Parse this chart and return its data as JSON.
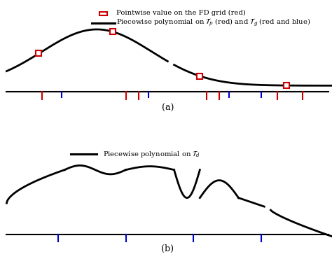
{
  "title_a": "(a)",
  "title_b": "(b)",
  "legend_top_label1": "Pointwise value on the FD grid (red)",
  "legend_top_label2": "Piecewise polynomial on $\\mathcal{T}_p$ (red) and $\\mathcal{T}_g$ (red and blue)",
  "legend_b_label": "Piecewise polynomial on $\\mathcal{T}_d$",
  "tick_a_red": [
    0.11,
    0.37,
    0.41,
    0.62,
    0.66,
    0.84,
    0.92
  ],
  "tick_a_blue": [
    0.17,
    0.44,
    0.69
  ],
  "tick_b_blue": [
    0.16,
    0.37,
    0.58,
    0.79
  ],
  "sq_red_color": "#cc0000",
  "line_color": "#000000",
  "bg_color": "#ffffff",
  "curve_lw": 2.0
}
